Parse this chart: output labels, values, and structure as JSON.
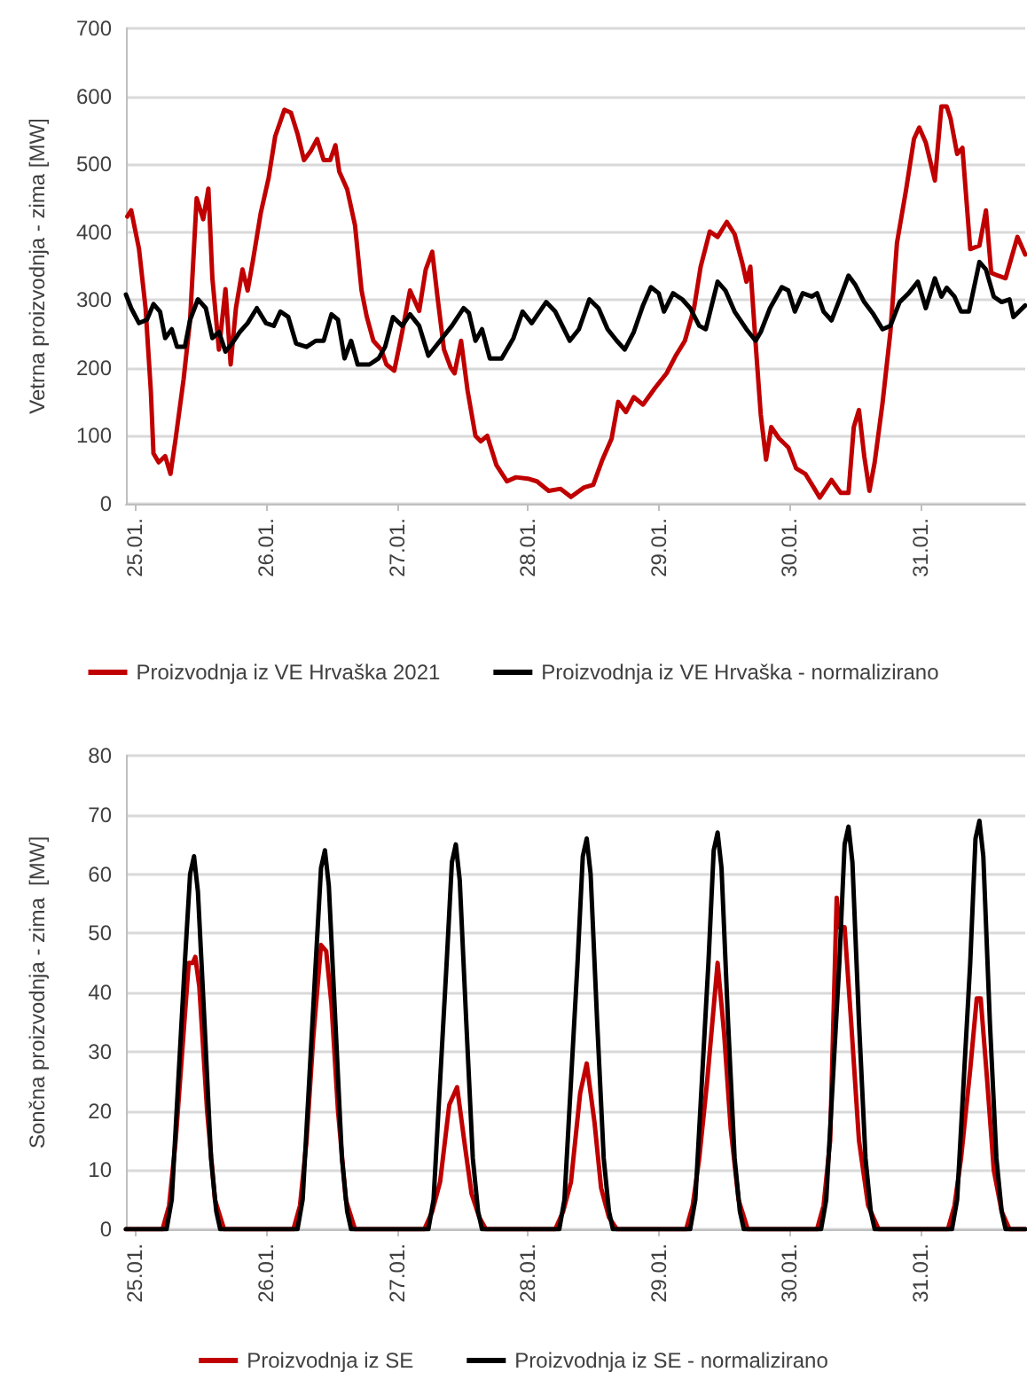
{
  "chart_data": [
    {
      "type": "line",
      "ylabel": "Vetrna proizvodnja - zima [MW]",
      "xlim": [
        "--01-24T22:19",
        "--01-31T19:12"
      ],
      "ylim": [
        0,
        700
      ],
      "yticks": [
        0,
        100,
        200,
        300,
        400,
        500,
        600,
        700
      ],
      "xticks": [
        {
          "value": "--01-25",
          "label": "25.01."
        },
        {
          "value": "--01-26",
          "label": "26.01."
        },
        {
          "value": "--01-27",
          "label": "27.01."
        },
        {
          "value": "--01-28",
          "label": "28.01."
        },
        {
          "value": "--01-29",
          "label": "29.01."
        },
        {
          "value": "--01-30",
          "label": "30.01."
        },
        {
          "value": "--01-31",
          "label": "31.01."
        }
      ],
      "grid": "y",
      "legend": "bottom",
      "marker": "none",
      "line_style": "solid",
      "series": [
        {
          "name": "Proizvodnja iz VE Hrvaška 2021",
          "color": "#c00000",
          "x": [
            "--01-24T22:34",
            "--01-24T23:17",
            "--01-25T00:43",
            "--01-25T01:55",
            "--01-25T02:53",
            "--01-25T03:22",
            "--01-25T04:19",
            "--01-25T05:31",
            "--01-25T06:29",
            "--01-25T07:26",
            "--01-25T08:53",
            "--01-25T10:05",
            "--01-25T11:17",
            "--01-25T12:29",
            "--01-25T13:26",
            "--01-25T14:10",
            "--01-25T15:22",
            "--01-25T16:34",
            "--01-25T17:31",
            "--01-25T18:29",
            "--01-25T19:41",
            "--01-25T20:38",
            "--01-25T21:36",
            "--01-25T23:02",
            "--01-26T00:29",
            "--01-26T01:41",
            "--01-26T03:22",
            "--01-26T04:34",
            "--01-26T05:46",
            "--01-26T06:58",
            "--01-26T08:10",
            "--01-26T09:22",
            "--01-26T10:34",
            "--01-26T11:46",
            "--01-26T12:43",
            "--01-26T13:26",
            "--01-26T14:53",
            "--01-26T16:19",
            "--01-26T17:31",
            "--01-26T18:29",
            "--01-26T19:41",
            "--01-26T21:07",
            "--01-26T22:05",
            "--01-26T23:31",
            "--01-27T00:58",
            "--01-27T02:24",
            "--01-27T04:05",
            "--01-27T05:17",
            "--01-27T06:29",
            "--01-27T07:26",
            "--01-27T08:38",
            "--01-27T09:50",
            "--01-27T10:34",
            "--01-27T11:46",
            "--01-27T12:58",
            "--01-27T14:24",
            "--01-27T15:22",
            "--01-27T16:34",
            "--01-27T18:14",
            "--01-27T20:10",
            "--01-27T21:50",
            "--01-28T00:00",
            "--01-28T01:41",
            "--01-28T03:50",
            "--01-28T06:00",
            "--01-28T07:55",
            "--01-28T10:19",
            "--01-28T12:00",
            "--01-28T13:41",
            "--01-28T15:22",
            "--01-28T16:34",
            "--01-28T18:00",
            "--01-28T19:26",
            "--01-28T21:07",
            "--01-28T23:17",
            "--01-29T01:26",
            "--01-29T03:07",
            "--01-29T04:48",
            "--01-29T06:29",
            "--01-29T07:41",
            "--01-29T09:22",
            "--01-29T10:48",
            "--01-29T12:29",
            "--01-29T13:55",
            "--01-29T15:22",
            "--01-29T16:05",
            "--01-29T16:48",
            "--01-29T17:46",
            "--01-29T18:43",
            "--01-29T19:41",
            "--01-29T20:38",
            "--01-29T22:05",
            "--01-29T23:46",
            "--01-30T01:12",
            "--01-30T02:53",
            "--01-30T04:34",
            "--01-30T05:31",
            "--01-30T07:41",
            "--01-30T09:22",
            "--01-30T10:48",
            "--01-30T11:46",
            "--01-30T12:43",
            "--01-30T13:41",
            "--01-30T14:38",
            "--01-30T15:36",
            "--01-30T17:02",
            "--01-30T18:29",
            "--01-30T19:41",
            "--01-30T21:22",
            "--01-30T22:48",
            "--01-30T23:46",
            "--01-31T00:58",
            "--01-31T02:38",
            "--01-31T03:50",
            "--01-31T04:48",
            "--01-31T05:31",
            "--01-31T06:43",
            "--01-31T07:41",
            "--01-31T09:07",
            "--01-31T10:48",
            "--01-31T12:00",
            "--01-31T12:58",
            "--01-31T14:10",
            "--01-31T15:36",
            "--01-31T17:46",
            "--01-31T19:12"
          ],
          "values": [
            423,
            432,
            375,
            288,
            166,
            74,
            61,
            70,
            44,
            96,
            183,
            271,
            450,
            419,
            464,
            332,
            227,
            316,
            205,
            288,
            345,
            314,
            358,
            428,
            480,
            541,
            580,
            576,
            545,
            506,
            519,
            537,
            506,
            506,
            528,
            489,
            463,
            410,
            314,
            275,
            240,
            227,
            205,
            196,
            253,
            314,
            284,
            345,
            371,
            305,
            227,
            201,
            192,
            240,
            166,
            100,
            92,
            100,
            57,
            33,
            39,
            37,
            33,
            19,
            22,
            10,
            24,
            28,
            65,
            96,
            150,
            135,
            157,
            146,
            170,
            192,
            218,
            240,
            288,
            349,
            401,
            393,
            415,
            397,
            353,
            327,
            349,
            236,
            131,
            65,
            113,
            96,
            83,
            52,
            44,
            22,
            9,
            35,
            16,
            16,
            113,
            138,
            70,
            19,
            61,
            148,
            253,
            384,
            463,
            537,
            554,
            532,
            476,
            585,
            585,
            567,
            515,
            524,
            375,
            380,
            432,
            340,
            336,
            332,
            393,
            367
          ]
        },
        {
          "name": "Proizvodnja iz VE Hrvaška - normalizirano",
          "color": "#000000",
          "x": [
            "--01-24T22:19",
            "--01-24T23:17",
            "--01-25T00:43",
            "--01-25T02:10",
            "--01-25T03:22",
            "--01-25T04:34",
            "--01-25T05:31",
            "--01-25T06:43",
            "--01-25T07:41",
            "--01-25T09:07",
            "--01-25T10:05",
            "--01-25T11:31",
            "--01-25T12:58",
            "--01-25T14:10",
            "--01-25T15:22",
            "--01-25T16:34",
            "--01-25T17:46",
            "--01-25T19:12",
            "--01-25T20:38",
            "--01-25T22:19",
            "--01-26T00:00",
            "--01-26T01:26",
            "--01-26T02:38",
            "--01-26T04:05",
            "--01-26T05:31",
            "--01-26T07:26",
            "--01-26T09:07",
            "--01-26T10:34",
            "--01-26T12:00",
            "--01-26T13:12",
            "--01-26T14:24",
            "--01-26T15:36",
            "--01-26T16:48",
            "--01-26T18:58",
            "--01-26T20:38",
            "--01-26T21:50",
            "--01-26T23:17",
            "--01-27T00:58",
            "--01-27T02:24",
            "--01-27T04:05",
            "--01-27T05:46",
            "--01-27T07:55",
            "--01-27T10:05",
            "--01-27T12:14",
            "--01-27T13:12",
            "--01-27T14:24",
            "--01-27T15:36",
            "--01-27T17:02",
            "--01-27T19:12",
            "--01-27T21:22",
            "--01-27T23:02",
            "--01-28T00:43",
            "--01-28T03:22",
            "--01-28T05:02",
            "--01-28T07:41",
            "--01-28T09:22",
            "--01-28T11:17",
            "--01-28T12:58",
            "--01-28T14:38",
            "--01-28T16:19",
            "--01-28T17:46",
            "--01-28T19:26",
            "--01-28T21:07",
            "--01-28T22:34",
            "--01-29T00:00",
            "--01-29T00:58",
            "--01-29T02:38",
            "--01-29T04:19",
            "--01-29T05:46",
            "--01-29T07:26",
            "--01-29T08:38",
            "--01-29T10:48",
            "--01-29T12:14",
            "--01-29T13:55",
            "--01-29T16:05",
            "--01-29T17:46",
            "--01-29T18:43",
            "--01-29T20:24",
            "--01-29T22:34",
            "--01-29T23:46",
            "--01-30T00:58",
            "--01-30T02:24",
            "--01-30T04:05",
            "--01-30T05:02",
            "--01-30T06:14",
            "--01-30T07:41",
            "--01-30T09:22",
            "--01-30T10:48",
            "--01-30T12:00",
            "--01-30T13:41",
            "--01-30T15:22",
            "--01-30T17:02",
            "--01-30T18:29",
            "--01-30T20:10",
            "--01-30T21:50",
            "--01-30T23:31",
            "--01-31T00:58",
            "--01-31T02:38",
            "--01-31T03:50",
            "--01-31T04:48",
            "--01-31T06:14",
            "--01-31T07:26",
            "--01-31T08:53",
            "--01-31T10:48",
            "--01-31T12:00",
            "--01-31T13:26",
            "--01-31T14:53",
            "--01-31T16:19",
            "--01-31T17:02",
            "--01-31T19:12"
          ],
          "values": [
            308,
            288,
            266,
            271,
            294,
            283,
            244,
            257,
            231,
            231,
            271,
            301,
            288,
            244,
            253,
            224,
            236,
            253,
            266,
            288,
            266,
            262,
            283,
            275,
            236,
            231,
            240,
            240,
            279,
            271,
            214,
            240,
            205,
            205,
            214,
            231,
            275,
            262,
            279,
            262,
            218,
            240,
            262,
            288,
            281,
            240,
            257,
            214,
            214,
            244,
            283,
            266,
            297,
            283,
            240,
            257,
            301,
            288,
            257,
            240,
            227,
            253,
            292,
            319,
            310,
            283,
            310,
            301,
            288,
            262,
            257,
            327,
            314,
            283,
            257,
            240,
            253,
            288,
            319,
            314,
            283,
            310,
            305,
            310,
            283,
            270,
            305,
            336,
            323,
            297,
            279,
            257,
            262,
            297,
            310,
            327,
            288,
            332,
            305,
            318,
            305,
            283,
            283,
            356,
            345,
            305,
            297,
            301,
            275,
            292
          ]
        }
      ]
    },
    {
      "type": "line",
      "ylabel": "Sončna proizvodnja - zima  [MW]",
      "xlim": [
        "--01-24T22:19",
        "--01-31T19:12"
      ],
      "ylim": [
        0,
        80
      ],
      "yticks": [
        0,
        10,
        20,
        30,
        40,
        50,
        60,
        70,
        80
      ],
      "xticks": [
        {
          "value": "--01-25",
          "label": "25.01."
        },
        {
          "value": "--01-26",
          "label": "26.01."
        },
        {
          "value": "--01-27",
          "label": "27.01."
        },
        {
          "value": "--01-28",
          "label": "28.01."
        },
        {
          "value": "--01-29",
          "label": "29.01."
        },
        {
          "value": "--01-30",
          "label": "30.01."
        },
        {
          "value": "--01-31",
          "label": "31.01."
        }
      ],
      "grid": "y",
      "legend": "bottom",
      "marker": "none",
      "line_style": "solid",
      "series": [
        {
          "name": "Proizvodnja iz SE",
          "color": "#c00000",
          "x": [
            "--01-24T22:19",
            "--01-25T05:02",
            "--01-25T06:14",
            "--01-25T07:26",
            "--01-25T08:38",
            "--01-25T09:50",
            "--01-25T10:34",
            "--01-25T11:02",
            "--01-25T11:46",
            "--01-25T13:12",
            "--01-25T14:38",
            "--01-25T16:19",
            "--01-26T05:02",
            "--01-26T06:14",
            "--01-26T07:26",
            "--01-26T08:38",
            "--01-26T10:05",
            "--01-26T11:02",
            "--01-26T12:00",
            "--01-26T13:12",
            "--01-26T14:38",
            "--01-26T16:19",
            "--01-27T05:02",
            "--01-27T06:29",
            "--01-27T07:55",
            "--01-27T09:36",
            "--01-27T11:02",
            "--01-27T12:29",
            "--01-27T13:41",
            "--01-27T15:07",
            "--01-27T16:19",
            "--01-28T05:02",
            "--01-28T06:29",
            "--01-28T07:55",
            "--01-28T09:36",
            "--01-28T10:48",
            "--01-28T12:14",
            "--01-28T13:26",
            "--01-28T14:53",
            "--01-28T16:19",
            "--01-29T05:02",
            "--01-29T06:14",
            "--01-29T07:26",
            "--01-29T08:53",
            "--01-29T10:48",
            "--01-29T12:00",
            "--01-29T13:12",
            "--01-29T14:38",
            "--01-29T16:19",
            "--01-30T05:02",
            "--01-30T06:14",
            "--01-30T07:26",
            "--01-30T08:38",
            "--01-30T09:07",
            "--01-30T10:05",
            "--01-30T11:17",
            "--01-30T12:43",
            "--01-30T14:24",
            "--01-30T16:19",
            "--01-31T05:02",
            "--01-31T06:14",
            "--01-31T07:26",
            "--01-31T09:07",
            "--01-31T10:19",
            "--01-31T11:02",
            "--01-31T12:14",
            "--01-31T13:26",
            "--01-31T14:53",
            "--01-31T16:19",
            "--01-31T19:12"
          ],
          "values": [
            0,
            0,
            4,
            15,
            30,
            45,
            45,
            46,
            41,
            20,
            5,
            0,
            0,
            4,
            15,
            32,
            48,
            47,
            38,
            20,
            5,
            0,
            0,
            3,
            8,
            21,
            24,
            14,
            6,
            2,
            0,
            0,
            3,
            8,
            23,
            28,
            18,
            7,
            2,
            0,
            0,
            4,
            12,
            25,
            45,
            33,
            17,
            5,
            0,
            0,
            4,
            15,
            56,
            51,
            51,
            35,
            15,
            4,
            0,
            0,
            4,
            12,
            27,
            39,
            39,
            25,
            10,
            3,
            0,
            0
          ]
        },
        {
          "name": "Proizvodnja iz SE - normalizirano",
          "color": "#000000",
          "x": [
            "--01-24T22:19",
            "--01-25T05:46",
            "--01-25T06:43",
            "--01-25T07:55",
            "--01-25T09:07",
            "--01-25T10:05",
            "--01-25T10:48",
            "--01-25T11:31",
            "--01-25T12:43",
            "--01-25T13:55",
            "--01-25T14:53",
            "--01-25T15:36",
            "--01-26T05:46",
            "--01-26T06:43",
            "--01-26T07:55",
            "--01-26T09:07",
            "--01-26T10:05",
            "--01-26T10:48",
            "--01-26T11:31",
            "--01-26T12:43",
            "--01-26T13:55",
            "--01-26T14:53",
            "--01-26T15:36",
            "--01-27T05:46",
            "--01-27T06:43",
            "--01-27T07:55",
            "--01-27T09:07",
            "--01-27T10:05",
            "--01-27T10:48",
            "--01-27T11:31",
            "--01-27T12:43",
            "--01-27T13:55",
            "--01-27T14:53",
            "--01-27T15:36",
            "--01-28T05:46",
            "--01-28T06:43",
            "--01-28T07:55",
            "--01-28T09:07",
            "--01-28T10:05",
            "--01-28T10:48",
            "--01-28T11:31",
            "--01-28T12:43",
            "--01-28T13:55",
            "--01-28T14:53",
            "--01-28T15:36",
            "--01-29T05:46",
            "--01-29T06:43",
            "--01-29T07:55",
            "--01-29T09:07",
            "--01-29T10:05",
            "--01-29T10:48",
            "--01-29T11:31",
            "--01-29T12:43",
            "--01-29T13:55",
            "--01-29T14:53",
            "--01-29T15:36",
            "--01-30T05:46",
            "--01-30T06:43",
            "--01-30T07:55",
            "--01-30T09:07",
            "--01-30T10:05",
            "--01-30T10:48",
            "--01-30T11:31",
            "--01-30T12:43",
            "--01-30T13:55",
            "--01-30T14:53",
            "--01-30T15:36",
            "--01-31T05:46",
            "--01-31T06:43",
            "--01-31T07:55",
            "--01-31T09:07",
            "--01-31T10:05",
            "--01-31T10:48",
            "--01-31T11:31",
            "--01-31T12:43",
            "--01-31T13:55",
            "--01-31T14:53",
            "--01-31T15:36",
            "--01-31T19:12"
          ],
          "values": [
            0,
            0,
            5,
            25,
            45,
            60,
            63,
            57,
            35,
            12,
            3,
            0,
            0,
            5,
            25,
            45,
            61,
            64,
            58,
            35,
            12,
            3,
            0,
            0,
            5,
            25,
            45,
            62,
            65,
            59,
            35,
            12,
            3,
            0,
            0,
            5,
            25,
            45,
            63,
            66,
            60,
            35,
            12,
            3,
            0,
            0,
            5,
            25,
            45,
            64,
            67,
            61,
            35,
            12,
            3,
            0,
            0,
            5,
            25,
            45,
            65,
            68,
            62,
            35,
            12,
            3,
            0,
            0,
            5,
            25,
            45,
            66,
            69,
            63,
            35,
            12,
            3,
            0,
            0
          ]
        }
      ]
    }
  ]
}
